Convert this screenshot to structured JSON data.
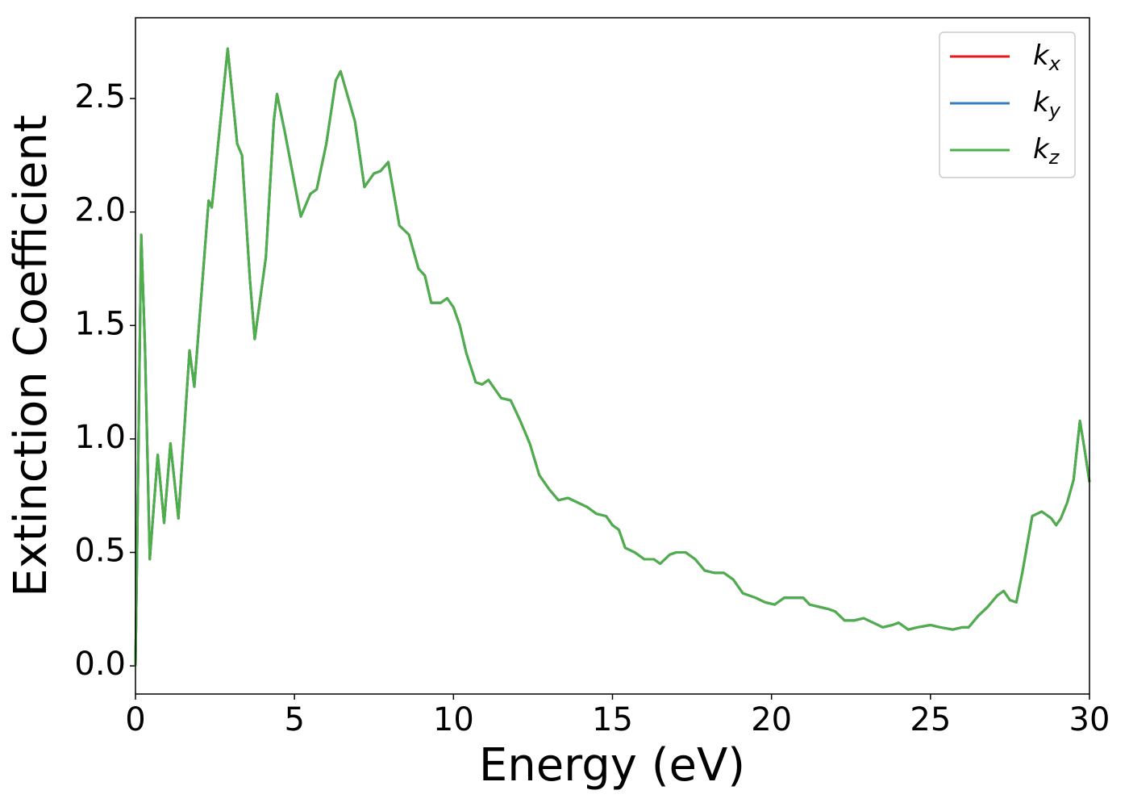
{
  "chart_data": {
    "type": "line",
    "xlabel": "Energy (eV)",
    "ylabel": "Extinction Coefficient",
    "xlim": [
      0,
      30
    ],
    "ylim": [
      -0.124,
      2.856
    ],
    "xticks": [
      0,
      5,
      10,
      15,
      20,
      25,
      30
    ],
    "yticks": [
      {
        "value": 0,
        "label": "0.0"
      },
      0.5,
      {
        "value": 1,
        "label": "1.0"
      },
      1.5,
      {
        "value": 2,
        "label": "2.0"
      },
      2.5
    ],
    "legend": "upper right",
    "grid": false,
    "x": [
      0,
      0.05,
      0.18,
      0.3,
      0.45,
      0.7,
      0.9,
      1.1,
      1.35,
      1.7,
      1.85,
      2.3,
      2.4,
      2.6,
      2.9,
      3.2,
      3.35,
      3.6,
      3.75,
      4.1,
      4.35,
      4.45,
      4.7,
      5.2,
      5.5,
      5.7,
      6.0,
      6.3,
      6.45,
      6.9,
      7.2,
      7.5,
      7.7,
      7.95,
      8.3,
      8.6,
      8.9,
      9.1,
      9.3,
      9.6,
      9.8,
      10.0,
      10.2,
      10.4,
      10.7,
      10.9,
      11.1,
      11.5,
      11.8,
      12.1,
      12.4,
      12.7,
      13.0,
      13.3,
      13.6,
      13.9,
      14.2,
      14.5,
      14.8,
      15.0,
      15.2,
      15.4,
      15.7,
      16.0,
      16.3,
      16.5,
      16.8,
      17.0,
      17.3,
      17.6,
      17.9,
      18.2,
      18.5,
      18.8,
      19.1,
      19.5,
      19.8,
      20.1,
      20.4,
      20.7,
      21.0,
      21.2,
      21.5,
      21.8,
      22.0,
      22.3,
      22.6,
      22.9,
      23.2,
      23.5,
      23.8,
      24.0,
      24.3,
      24.6,
      25.0,
      25.3,
      25.7,
      26.0,
      26.2,
      26.5,
      26.8,
      27.1,
      27.3,
      27.5,
      27.7,
      27.9,
      28.2,
      28.5,
      28.8,
      28.95,
      29.1,
      29.3,
      29.5,
      29.7,
      29.85,
      30.0
    ],
    "series": [
      {
        "name": "kx",
        "color": "#e41a1c",
        "values": [
          0,
          0.5,
          1.9,
          1.4,
          0.47,
          0.93,
          0.63,
          0.98,
          0.65,
          1.39,
          1.23,
          2.05,
          2.02,
          2.3,
          2.72,
          2.3,
          2.25,
          1.7,
          1.44,
          1.8,
          2.4,
          2.52,
          2.35,
          1.98,
          2.08,
          2.1,
          2.3,
          2.58,
          2.62,
          2.4,
          2.11,
          2.17,
          2.18,
          2.22,
          1.94,
          1.9,
          1.75,
          1.72,
          1.6,
          1.6,
          1.62,
          1.58,
          1.5,
          1.38,
          1.25,
          1.24,
          1.26,
          1.18,
          1.17,
          1.08,
          0.98,
          0.84,
          0.78,
          0.73,
          0.74,
          0.72,
          0.7,
          0.67,
          0.66,
          0.62,
          0.6,
          0.52,
          0.5,
          0.47,
          0.47,
          0.45,
          0.49,
          0.5,
          0.5,
          0.47,
          0.42,
          0.41,
          0.41,
          0.38,
          0.32,
          0.3,
          0.28,
          0.27,
          0.3,
          0.3,
          0.3,
          0.27,
          0.26,
          0.25,
          0.24,
          0.2,
          0.2,
          0.21,
          0.19,
          0.17,
          0.18,
          0.19,
          0.16,
          0.17,
          0.18,
          0.17,
          0.16,
          0.17,
          0.17,
          0.22,
          0.26,
          0.31,
          0.33,
          0.29,
          0.28,
          0.42,
          0.66,
          0.68,
          0.65,
          0.62,
          0.65,
          0.72,
          0.82,
          1.08,
          0.95,
          0.81
        ]
      },
      {
        "name": "ky",
        "color": "#377eb8",
        "values": [
          0,
          0.5,
          1.9,
          1.4,
          0.47,
          0.93,
          0.63,
          0.98,
          0.65,
          1.39,
          1.23,
          2.05,
          2.02,
          2.3,
          2.72,
          2.3,
          2.25,
          1.7,
          1.44,
          1.8,
          2.4,
          2.52,
          2.35,
          1.98,
          2.08,
          2.1,
          2.3,
          2.58,
          2.62,
          2.4,
          2.11,
          2.17,
          2.18,
          2.22,
          1.94,
          1.9,
          1.75,
          1.72,
          1.6,
          1.6,
          1.62,
          1.58,
          1.5,
          1.38,
          1.25,
          1.24,
          1.26,
          1.18,
          1.17,
          1.08,
          0.98,
          0.84,
          0.78,
          0.73,
          0.74,
          0.72,
          0.7,
          0.67,
          0.66,
          0.62,
          0.6,
          0.52,
          0.5,
          0.47,
          0.47,
          0.45,
          0.49,
          0.5,
          0.5,
          0.47,
          0.42,
          0.41,
          0.41,
          0.38,
          0.32,
          0.3,
          0.28,
          0.27,
          0.3,
          0.3,
          0.3,
          0.27,
          0.26,
          0.25,
          0.24,
          0.2,
          0.2,
          0.21,
          0.19,
          0.17,
          0.18,
          0.19,
          0.16,
          0.17,
          0.18,
          0.17,
          0.16,
          0.17,
          0.17,
          0.22,
          0.26,
          0.31,
          0.33,
          0.29,
          0.28,
          0.42,
          0.66,
          0.68,
          0.65,
          0.62,
          0.65,
          0.72,
          0.82,
          1.08,
          0.95,
          0.81
        ]
      },
      {
        "name": "kz",
        "color": "#4daf4a",
        "values": [
          0,
          0.5,
          1.9,
          1.4,
          0.47,
          0.93,
          0.63,
          0.98,
          0.65,
          1.39,
          1.23,
          2.05,
          2.02,
          2.3,
          2.72,
          2.3,
          2.25,
          1.7,
          1.44,
          1.8,
          2.4,
          2.52,
          2.35,
          1.98,
          2.08,
          2.1,
          2.3,
          2.58,
          2.62,
          2.4,
          2.11,
          2.17,
          2.18,
          2.22,
          1.94,
          1.9,
          1.75,
          1.72,
          1.6,
          1.6,
          1.62,
          1.58,
          1.5,
          1.38,
          1.25,
          1.24,
          1.26,
          1.18,
          1.17,
          1.08,
          0.98,
          0.84,
          0.78,
          0.73,
          0.74,
          0.72,
          0.7,
          0.67,
          0.66,
          0.62,
          0.6,
          0.52,
          0.5,
          0.47,
          0.47,
          0.45,
          0.49,
          0.5,
          0.5,
          0.47,
          0.42,
          0.41,
          0.41,
          0.38,
          0.32,
          0.3,
          0.28,
          0.27,
          0.3,
          0.3,
          0.3,
          0.27,
          0.26,
          0.25,
          0.24,
          0.2,
          0.2,
          0.21,
          0.19,
          0.17,
          0.18,
          0.19,
          0.16,
          0.17,
          0.18,
          0.17,
          0.16,
          0.17,
          0.17,
          0.22,
          0.26,
          0.31,
          0.33,
          0.29,
          0.28,
          0.42,
          0.66,
          0.68,
          0.65,
          0.62,
          0.65,
          0.72,
          0.82,
          1.08,
          0.95,
          0.81
        ]
      }
    ]
  }
}
